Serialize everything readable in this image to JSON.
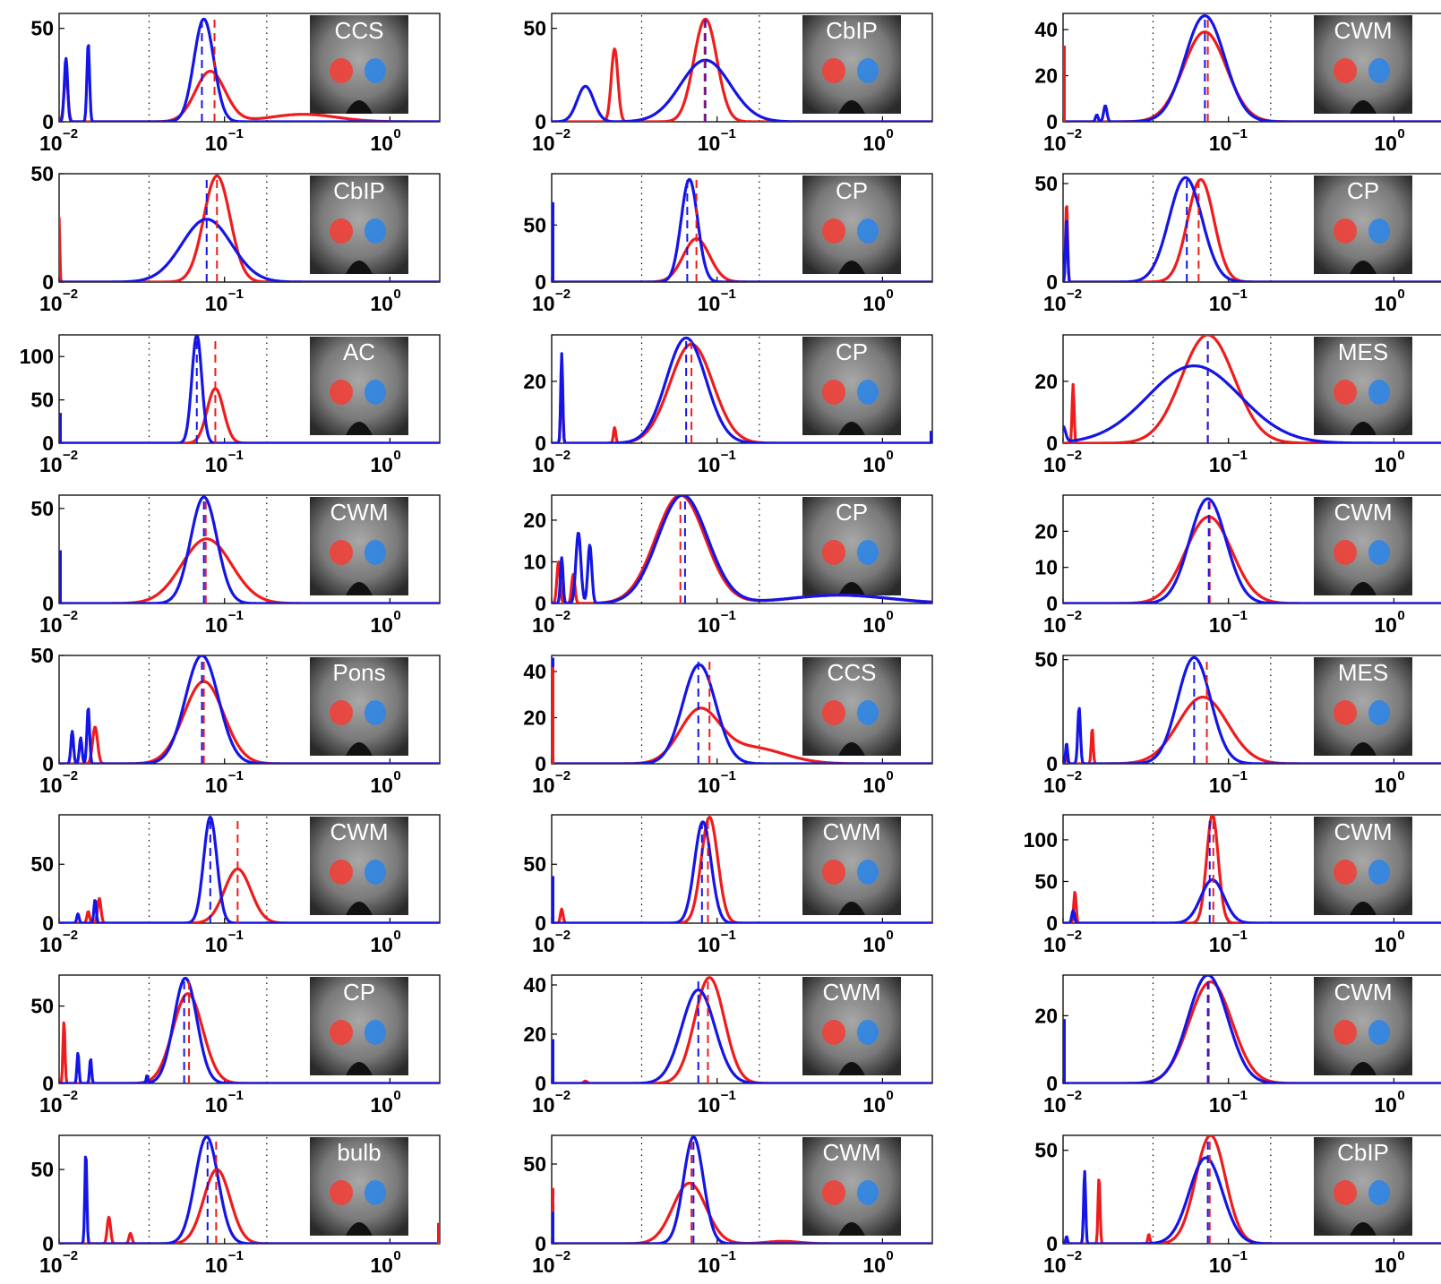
{
  "colors": {
    "red_series": "#ee1c1c",
    "blue_series": "#1515e6",
    "red_region": "#f0403a",
    "blue_region": "#2f86e6"
  },
  "x_tick_labels": [
    {
      "base": "10",
      "exp": "−2"
    },
    {
      "base": "10",
      "exp": "−1"
    },
    {
      "base": "10",
      "exp": "0"
    }
  ],
  "chart_data": [
    {
      "type": "line",
      "panel": "r1c1",
      "inset_label": "CCS",
      "xscale": "log",
      "xlim": [
        0.01,
        2
      ],
      "ylim": [
        0,
        58
      ],
      "yticks": [
        0,
        50
      ],
      "blue": {
        "peaks": [
          [
            0.075,
            55,
            0.06
          ],
          [
            0.011,
            34,
            0.01
          ],
          [
            0.015,
            42,
            0.008
          ]
        ],
        "median": 0.073
      },
      "red": {
        "peaks": [
          [
            0.082,
            27,
            0.09
          ],
          [
            0.3,
            4,
            0.2
          ],
          [
            0.011,
            25,
            0.012
          ]
        ],
        "median": 0.087
      }
    },
    {
      "type": "line",
      "panel": "r1c2",
      "inset_label": "CbIP",
      "xscale": "log",
      "xlim": [
        0.01,
        2
      ],
      "ylim": [
        0,
        58
      ],
      "yticks": [
        0,
        50
      ],
      "blue": {
        "peaks": [
          [
            0.085,
            33,
            0.15
          ],
          [
            0.016,
            19,
            0.05
          ]
        ],
        "median": 0.085
      },
      "red": {
        "peaks": [
          [
            0.085,
            55,
            0.07
          ],
          [
            0.024,
            39,
            0.02
          ]
        ],
        "median": 0.084
      }
    },
    {
      "type": "line",
      "panel": "r1c3",
      "inset_label": "CWM",
      "xscale": "log",
      "xlim": [
        0.01,
        2
      ],
      "ylim": [
        0,
        47
      ],
      "yticks": [
        0,
        20,
        40
      ],
      "blue": {
        "peaks": [
          [
            0.072,
            46,
            0.12
          ],
          [
            0.018,
            7,
            0.01
          ],
          [
            0.016,
            3,
            0.008
          ]
        ],
        "median": 0.072
      },
      "red": {
        "peaks": [
          [
            0.072,
            39,
            0.13
          ]
        ],
        "median": 0.075
      },
      "spikes": [
        {
          "x": 0.01,
          "y": 33,
          "series": "red"
        }
      ]
    },
    {
      "type": "line",
      "panel": "r2c1",
      "inset_label": "CbIP",
      "xscale": "log",
      "xlim": [
        0.01,
        2
      ],
      "ylim": [
        0,
        50
      ],
      "yticks": [
        0,
        50
      ],
      "blue": {
        "peaks": [
          [
            0.078,
            29,
            0.15
          ]
        ],
        "median": 0.078
      },
      "red": {
        "peaks": [
          [
            0.09,
            49,
            0.08
          ],
          [
            0.01,
            30,
            0.004
          ]
        ],
        "median": 0.09
      }
    },
    {
      "type": "line",
      "panel": "r2c2",
      "inset_label": "CP",
      "xscale": "log",
      "xlim": [
        0.01,
        2
      ],
      "ylim": [
        0,
        95
      ],
      "yticks": [
        0,
        50
      ],
      "blue": {
        "peaks": [
          [
            0.068,
            90,
            0.05
          ]
        ],
        "median": 0.066
      },
      "red": {
        "peaks": [
          [
            0.075,
            38,
            0.08
          ]
        ],
        "median": 0.075
      },
      "spikes": [
        {
          "x": 0.01,
          "y": 70,
          "series": "blue"
        }
      ]
    },
    {
      "type": "line",
      "panel": "r2c3",
      "inset_label": "CP",
      "xscale": "log",
      "xlim": [
        0.01,
        2
      ],
      "ylim": [
        0,
        55
      ],
      "yticks": [
        0,
        50
      ],
      "blue": {
        "peaks": [
          [
            0.055,
            53,
            0.1
          ],
          [
            0.0105,
            33,
            0.006
          ]
        ],
        "median": 0.056
      },
      "red": {
        "peaks": [
          [
            0.068,
            52,
            0.08
          ],
          [
            0.0105,
            41,
            0.006
          ]
        ],
        "median": 0.066
      }
    },
    {
      "type": "line",
      "panel": "r3c1",
      "inset_label": "AC",
      "xscale": "log",
      "xlim": [
        0.01,
        2
      ],
      "ylim": [
        0,
        125
      ],
      "yticks": [
        0,
        50,
        100
      ],
      "blue": {
        "peaks": [
          [
            0.068,
            125,
            0.03
          ]
        ],
        "median": 0.068
      },
      "red": {
        "peaks": [
          [
            0.088,
            63,
            0.05
          ]
        ],
        "median": 0.088
      },
      "spikes": [
        {
          "x": 0.01,
          "y": 35,
          "series": "blue"
        }
      ]
    },
    {
      "type": "line",
      "panel": "r3c2",
      "inset_label": "CP",
      "xscale": "log",
      "xlim": [
        0.01,
        2
      ],
      "ylim": [
        0,
        35
      ],
      "yticks": [
        0,
        20
      ],
      "blue": {
        "peaks": [
          [
            0.065,
            34,
            0.12
          ],
          [
            0.0115,
            29,
            0.006
          ]
        ],
        "median": 0.065
      },
      "red": {
        "peaks": [
          [
            0.07,
            32,
            0.13
          ],
          [
            0.0115,
            22,
            0.006
          ],
          [
            0.024,
            5,
            0.007
          ]
        ],
        "median": 0.07
      },
      "spikes": [
        {
          "x": 2,
          "y": 4,
          "series": "blue"
        }
      ]
    },
    {
      "type": "line",
      "panel": "r3c3",
      "inset_label": "MES",
      "xscale": "log",
      "xlim": [
        0.01,
        2
      ],
      "ylim": [
        0,
        35
      ],
      "yticks": [
        0,
        20
      ],
      "blue": {
        "peaks": [
          [
            0.062,
            25,
            0.28
          ],
          [
            0.01,
            5,
            0.015
          ]
        ],
        "median": 0.075
      },
      "red": {
        "peaks": [
          [
            0.075,
            35,
            0.16
          ],
          [
            0.0115,
            19,
            0.006
          ]
        ],
        "median": 0.075
      },
      "spikes": [
        {
          "x": 2,
          "y": 3,
          "series": "red"
        }
      ]
    },
    {
      "type": "line",
      "panel": "r4c1",
      "inset_label": "CWM",
      "xscale": "log",
      "xlim": [
        0.01,
        2
      ],
      "ylim": [
        0,
        57
      ],
      "yticks": [
        0,
        50
      ],
      "blue": {
        "peaks": [
          [
            0.075,
            56,
            0.08
          ]
        ],
        "median": 0.075
      },
      "red": {
        "peaks": [
          [
            0.078,
            34,
            0.15
          ]
        ],
        "median": 0.077
      },
      "spikes": [
        {
          "x": 0.01,
          "y": 28,
          "series": "blue"
        }
      ]
    },
    {
      "type": "line",
      "panel": "r4c2",
      "inset_label": "CP",
      "xscale": "log",
      "xlim": [
        0.01,
        2
      ],
      "ylim": [
        0,
        26
      ],
      "yticks": [
        0,
        10,
        20
      ],
      "blue": {
        "peaks": [
          [
            0.062,
            26,
            0.15
          ],
          [
            0.0145,
            17,
            0.015
          ],
          [
            0.017,
            14,
            0.012
          ],
          [
            0.0115,
            11,
            0.008
          ],
          [
            0.55,
            2,
            0.3
          ]
        ],
        "median": 0.064
      },
      "red": {
        "peaks": [
          [
            0.06,
            26,
            0.15
          ],
          [
            0.011,
            10,
            0.01
          ],
          [
            0.0135,
            7,
            0.01
          ],
          [
            0.55,
            2,
            0.3
          ]
        ],
        "median": 0.06
      }
    },
    {
      "type": "line",
      "panel": "r4c3",
      "inset_label": "CWM",
      "xscale": "log",
      "xlim": [
        0.01,
        2
      ],
      "ylim": [
        0,
        30
      ],
      "yticks": [
        0,
        10,
        20
      ],
      "blue": {
        "peaks": [
          [
            0.075,
            29,
            0.11
          ],
          [
            0.0095,
            10,
            0.005
          ]
        ],
        "median": 0.076
      },
      "red": {
        "peaks": [
          [
            0.076,
            24,
            0.14
          ],
          [
            0.0095,
            8,
            0.005
          ]
        ],
        "median": 0.077
      }
    },
    {
      "type": "line",
      "panel": "r5c1",
      "inset_label": "Pons",
      "xscale": "log",
      "xlim": [
        0.01,
        2
      ],
      "ylim": [
        0,
        50
      ],
      "yticks": [
        0,
        50
      ],
      "blue": {
        "peaks": [
          [
            0.073,
            50,
            0.1
          ],
          [
            0.015,
            26,
            0.008
          ],
          [
            0.012,
            15,
            0.008
          ],
          [
            0.0135,
            12,
            0.008
          ]
        ],
        "median": 0.073
      },
      "red": {
        "peaks": [
          [
            0.075,
            38,
            0.12
          ],
          [
            0.0165,
            17,
            0.015
          ]
        ],
        "median": 0.075
      }
    },
    {
      "type": "line",
      "panel": "r5c2",
      "inset_label": "CCS",
      "xscale": "log",
      "xlim": [
        0.01,
        2
      ],
      "ylim": [
        0,
        47
      ],
      "yticks": [
        0,
        20,
        40
      ],
      "blue": {
        "peaks": [
          [
            0.078,
            43,
            0.1
          ]
        ],
        "median": 0.077
      },
      "red": {
        "peaks": [
          [
            0.078,
            22,
            0.12
          ],
          [
            0.16,
            7,
            0.2
          ]
        ],
        "median": 0.09
      },
      "spikes": [
        {
          "x": 0.01,
          "y": 46,
          "series": "blue"
        },
        {
          "x": 0.01,
          "y": 42,
          "series": "red"
        }
      ]
    },
    {
      "type": "line",
      "panel": "r5c3",
      "inset_label": "MES",
      "xscale": "log",
      "xlim": [
        0.01,
        2
      ],
      "ylim": [
        0,
        52
      ],
      "yticks": [
        0,
        50
      ],
      "blue": {
        "peaks": [
          [
            0.062,
            51,
            0.1
          ],
          [
            0.0125,
            27,
            0.008
          ],
          [
            0.0105,
            10,
            0.006
          ]
        ],
        "median": 0.062
      },
      "red": {
        "peaks": [
          [
            0.07,
            32,
            0.15
          ],
          [
            0.015,
            17,
            0.006
          ],
          [
            0.0105,
            3,
            0.006
          ]
        ],
        "median": 0.074
      }
    },
    {
      "type": "line",
      "panel": "r6c1",
      "inset_label": "CWM",
      "xscale": "log",
      "xlim": [
        0.01,
        2
      ],
      "ylim": [
        0,
        92
      ],
      "yticks": [
        0,
        50
      ],
      "blue": {
        "peaks": [
          [
            0.082,
            90,
            0.04
          ],
          [
            0.0165,
            20,
            0.007
          ],
          [
            0.013,
            8,
            0.007
          ]
        ],
        "median": 0.082
      },
      "red": {
        "peaks": [
          [
            0.12,
            46,
            0.08
          ],
          [
            0.0175,
            21,
            0.01
          ],
          [
            0.015,
            10,
            0.008
          ]
        ],
        "median": 0.12
      }
    },
    {
      "type": "line",
      "panel": "r6c2",
      "inset_label": "CWM",
      "xscale": "log",
      "xlim": [
        0.01,
        2
      ],
      "ylim": [
        0,
        92
      ],
      "yticks": [
        0,
        50
      ],
      "blue": {
        "peaks": [
          [
            0.082,
            86,
            0.05
          ]
        ],
        "median": 0.081
      },
      "red": {
        "peaks": [
          [
            0.09,
            90,
            0.05
          ],
          [
            0.0115,
            12,
            0.008
          ]
        ],
        "median": 0.088
      },
      "spikes": [
        {
          "x": 0.01,
          "y": 40,
          "series": "blue"
        }
      ]
    },
    {
      "type": "line",
      "panel": "r6c3",
      "inset_label": "CWM",
      "xscale": "log",
      "xlim": [
        0.01,
        2
      ],
      "ylim": [
        0,
        130
      ],
      "yticks": [
        0,
        50,
        100
      ],
      "blue": {
        "peaks": [
          [
            0.08,
            52,
            0.07
          ],
          [
            0.0115,
            15,
            0.008
          ]
        ],
        "median": 0.077
      },
      "red": {
        "peaks": [
          [
            0.08,
            130,
            0.035
          ],
          [
            0.0118,
            38,
            0.007
          ]
        ],
        "median": 0.081
      }
    },
    {
      "type": "line",
      "panel": "r7c1",
      "inset_label": "CP",
      "xscale": "log",
      "xlim": [
        0.01,
        2
      ],
      "ylim": [
        0,
        70
      ],
      "yticks": [
        0,
        50
      ],
      "blue": {
        "peaks": [
          [
            0.058,
            68,
            0.07
          ],
          [
            0.034,
            5,
            0.005
          ],
          [
            0.013,
            20,
            0.006
          ],
          [
            0.0155,
            16,
            0.006
          ]
        ],
        "median": 0.057
      },
      "red": {
        "peaks": [
          [
            0.06,
            58,
            0.09
          ],
          [
            0.0107,
            40,
            0.006
          ]
        ],
        "median": 0.061
      }
    },
    {
      "type": "line",
      "panel": "r7c2",
      "inset_label": "CWM",
      "xscale": "log",
      "xlim": [
        0.01,
        2
      ],
      "ylim": [
        0,
        44
      ],
      "yticks": [
        0,
        20,
        40
      ],
      "blue": {
        "peaks": [
          [
            0.077,
            38,
            0.1
          ]
        ],
        "median": 0.077
      },
      "red": {
        "peaks": [
          [
            0.09,
            43,
            0.09
          ],
          [
            0.016,
            1,
            0.01
          ]
        ],
        "median": 0.088
      },
      "spikes": [
        {
          "x": 0.01,
          "y": 18,
          "series": "blue"
        }
      ]
    },
    {
      "type": "line",
      "panel": "r7c3",
      "inset_label": "CWM",
      "xscale": "log",
      "xlim": [
        0.01,
        2
      ],
      "ylim": [
        0,
        32
      ],
      "yticks": [
        0,
        20
      ],
      "blue": {
        "peaks": [
          [
            0.075,
            32,
            0.12
          ]
        ],
        "median": 0.075
      },
      "red": {
        "peaks": [
          [
            0.078,
            30,
            0.13
          ]
        ],
        "median": 0.076
      },
      "spikes": [
        {
          "x": 0.01,
          "y": 19,
          "series": "blue"
        }
      ]
    },
    {
      "type": "line",
      "panel": "r8c1",
      "inset_label": "bulb",
      "xscale": "log",
      "xlim": [
        0.01,
        2
      ],
      "ylim": [
        0,
        73
      ],
      "yticks": [
        0,
        50
      ],
      "blue": {
        "peaks": [
          [
            0.078,
            72,
            0.07
          ],
          [
            0.0145,
            62,
            0.006
          ]
        ],
        "median": 0.079
      },
      "red": {
        "peaks": [
          [
            0.09,
            50,
            0.08
          ],
          [
            0.02,
            18,
            0.01
          ],
          [
            0.027,
            7,
            0.009
          ]
        ],
        "median": 0.089
      },
      "spikes": [
        {
          "x": 2,
          "y": 14,
          "series": "red"
        }
      ]
    },
    {
      "type": "line",
      "panel": "r8c2",
      "inset_label": "CWM",
      "xscale": "log",
      "xlim": [
        0.01,
        2
      ],
      "ylim": [
        0,
        68
      ],
      "yticks": [
        0,
        50
      ],
      "blue": {
        "peaks": [
          [
            0.072,
            67,
            0.06
          ]
        ],
        "median": 0.072
      },
      "red": {
        "peaks": [
          [
            0.068,
            38,
            0.1
          ],
          [
            0.25,
            1.5,
            0.1
          ]
        ],
        "median": 0.07
      },
      "spikes": [
        {
          "x": 0.01,
          "y": 35,
          "series": "red"
        },
        {
          "x": 0.01,
          "y": 20,
          "series": "blue"
        }
      ]
    },
    {
      "type": "line",
      "panel": "r8c3",
      "inset_label": "CbIP",
      "xscale": "log",
      "xlim": [
        0.01,
        2
      ],
      "ylim": [
        0,
        58
      ],
      "yticks": [
        0,
        50
      ],
      "blue": {
        "peaks": [
          [
            0.073,
            46,
            0.1
          ],
          [
            0.0135,
            39,
            0.006
          ],
          [
            0.0105,
            4,
            0.005
          ]
        ],
        "median": 0.075
      },
      "red": {
        "peaks": [
          [
            0.078,
            58,
            0.09
          ],
          [
            0.0165,
            36,
            0.006
          ],
          [
            0.033,
            5,
            0.006
          ]
        ],
        "median": 0.077
      }
    }
  ]
}
